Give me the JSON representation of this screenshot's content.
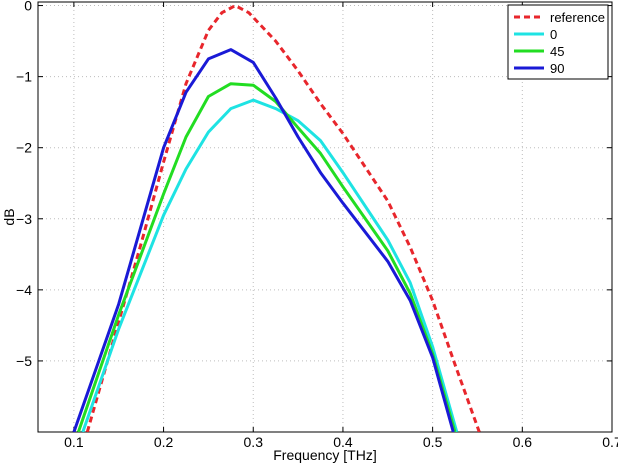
{
  "chart_data": {
    "type": "line",
    "title": "",
    "xlabel": "Frequency [THz]",
    "ylabel": "dB",
    "xlim": [
      0.06,
      0.7
    ],
    "ylim": [
      -6,
      0.05
    ],
    "xticks": [
      0.1,
      0.2,
      0.3,
      0.4,
      0.5,
      0.6,
      0.7
    ],
    "xtick_labels": [
      "0.1",
      "0.2",
      "0.3",
      "0.4",
      "0.5",
      "0.6",
      "0.7"
    ],
    "yticks": [
      0,
      -1,
      -2,
      -3,
      -4,
      -5
    ],
    "ytick_labels": [
      "0",
      "−1",
      "−2",
      "−3",
      "−4",
      "−5"
    ],
    "grid": true,
    "legend_position": "top-right",
    "series": [
      {
        "name": "reference",
        "color": "#e8262c",
        "dash": "dashed",
        "x": [
          0.115,
          0.15,
          0.175,
          0.2,
          0.225,
          0.25,
          0.265,
          0.28,
          0.295,
          0.325,
          0.35,
          0.375,
          0.4,
          0.45,
          0.475,
          0.5,
          0.525,
          0.552
        ],
        "y": [
          -6.0,
          -4.45,
          -3.35,
          -2.2,
          -1.1,
          -0.35,
          -0.1,
          0.0,
          -0.1,
          -0.5,
          -0.92,
          -1.38,
          -1.8,
          -2.75,
          -3.4,
          -4.15,
          -5.05,
          -6.0
        ]
      },
      {
        "name": "0",
        "color": "#1ee3e3",
        "dash": "solid",
        "x": [
          0.11,
          0.15,
          0.2,
          0.225,
          0.25,
          0.275,
          0.3,
          0.325,
          0.35,
          0.375,
          0.4,
          0.45,
          0.475,
          0.5,
          0.527
        ],
        "y": [
          -6.0,
          -4.55,
          -2.95,
          -2.3,
          -1.78,
          -1.45,
          -1.33,
          -1.45,
          -1.62,
          -1.9,
          -2.35,
          -3.3,
          -3.9,
          -4.8,
          -6.0
        ]
      },
      {
        "name": "45",
        "color": "#22dd22",
        "dash": "solid",
        "x": [
          0.105,
          0.15,
          0.2,
          0.225,
          0.25,
          0.275,
          0.3,
          0.325,
          0.35,
          0.375,
          0.4,
          0.45,
          0.475,
          0.5,
          0.525
        ],
        "y": [
          -6.0,
          -4.35,
          -2.65,
          -1.85,
          -1.28,
          -1.1,
          -1.12,
          -1.35,
          -1.72,
          -2.08,
          -2.55,
          -3.45,
          -4.05,
          -4.9,
          -6.0
        ]
      },
      {
        "name": "90",
        "color": "#1a1ad6",
        "dash": "solid",
        "x": [
          0.1,
          0.15,
          0.2,
          0.225,
          0.25,
          0.275,
          0.3,
          0.325,
          0.35,
          0.375,
          0.4,
          0.45,
          0.475,
          0.5,
          0.523
        ],
        "y": [
          -6.0,
          -4.2,
          -2.0,
          -1.22,
          -0.75,
          -0.62,
          -0.8,
          -1.3,
          -1.85,
          -2.35,
          -2.78,
          -3.6,
          -4.15,
          -4.95,
          -6.0
        ]
      }
    ]
  }
}
